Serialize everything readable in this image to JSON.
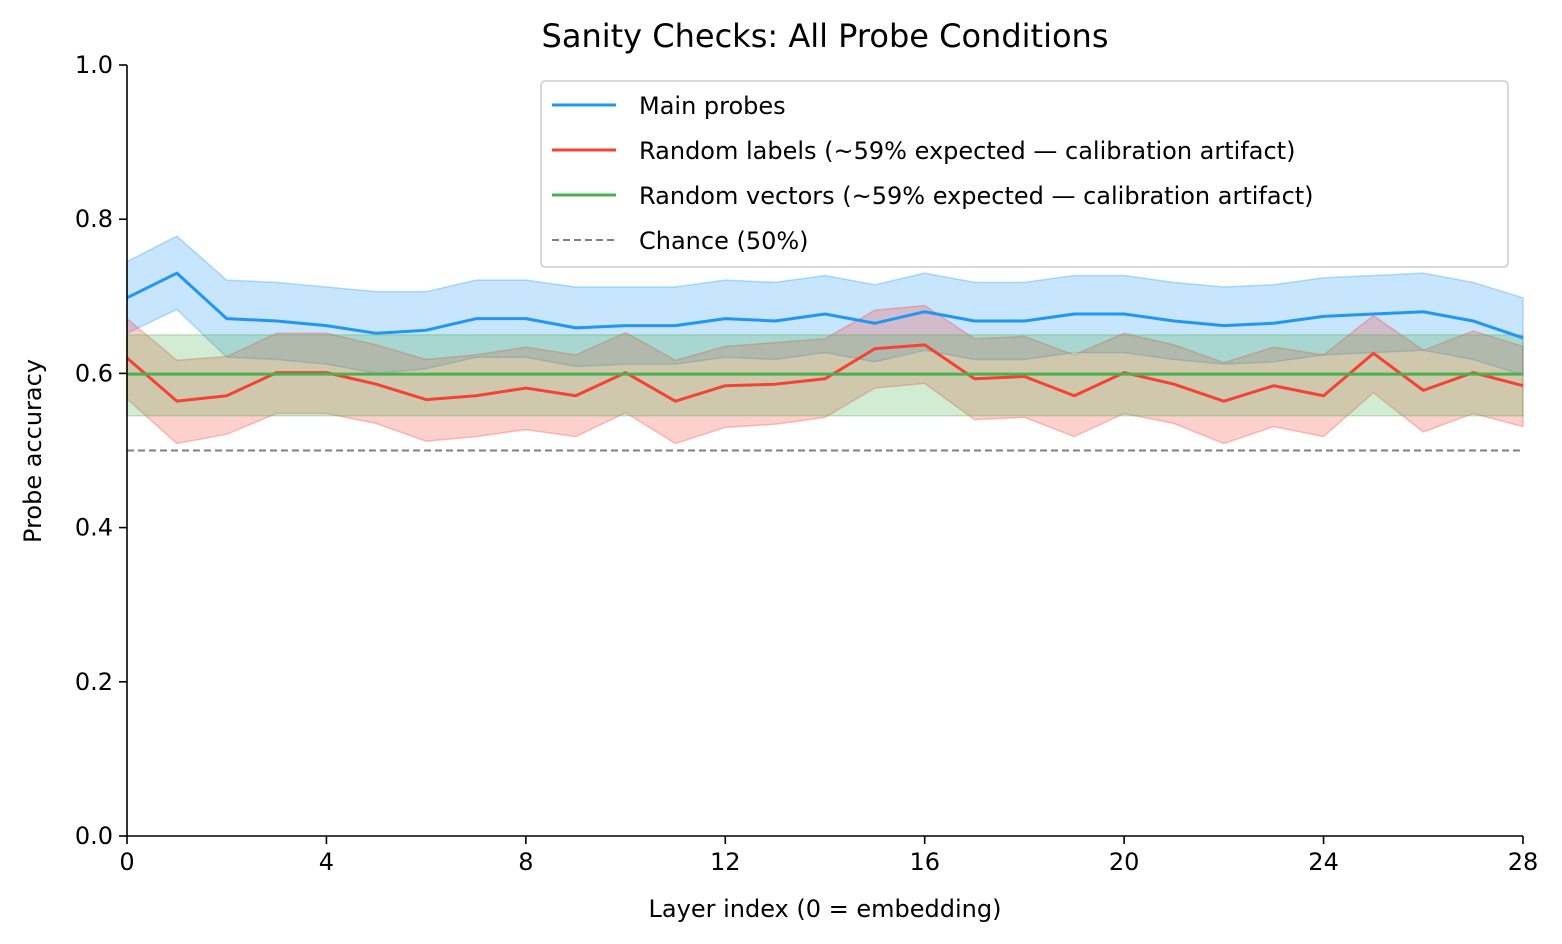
{
  "chart_data": {
    "type": "line",
    "title": "Sanity Checks: All Probe Conditions",
    "xlabel": "Layer index (0 = embedding)",
    "ylabel": "Probe accuracy",
    "xlim": [
      0,
      28
    ],
    "ylim": [
      0,
      1
    ],
    "xticks": [
      0,
      4,
      8,
      12,
      16,
      20,
      24,
      28
    ],
    "yticks": [
      0.0,
      0.2,
      0.4,
      0.6,
      0.8,
      1.0
    ],
    "ytick_labels": [
      "0.0",
      "0.2",
      "0.4",
      "0.6",
      "0.8",
      "1.0"
    ],
    "grid": false,
    "legend_position": "top-right",
    "x": [
      0,
      1,
      2,
      3,
      4,
      5,
      6,
      7,
      8,
      9,
      10,
      11,
      12,
      13,
      14,
      15,
      16,
      17,
      18,
      19,
      20,
      21,
      22,
      23,
      24,
      25,
      26,
      27,
      28
    ],
    "series": [
      {
        "name": "Main probes",
        "color": "#2196F3",
        "style": "solid",
        "values": [
          0.698,
          0.73,
          0.671,
          0.668,
          0.662,
          0.652,
          0.656,
          0.671,
          0.671,
          0.659,
          0.662,
          0.662,
          0.671,
          0.668,
          0.677,
          0.665,
          0.68,
          0.668,
          0.668,
          0.677,
          0.677,
          0.668,
          0.662,
          0.665,
          0.674,
          0.677,
          0.68,
          0.668,
          0.646
        ],
        "band_upper": [
          0.745,
          0.778,
          0.721,
          0.718,
          0.712,
          0.706,
          0.706,
          0.721,
          0.721,
          0.712,
          0.712,
          0.712,
          0.721,
          0.718,
          0.727,
          0.715,
          0.73,
          0.718,
          0.718,
          0.727,
          0.727,
          0.718,
          0.712,
          0.715,
          0.724,
          0.727,
          0.73,
          0.718,
          0.698
        ],
        "band_lower": [
          0.652,
          0.683,
          0.621,
          0.618,
          0.612,
          0.6,
          0.606,
          0.621,
          0.621,
          0.609,
          0.612,
          0.612,
          0.621,
          0.618,
          0.627,
          0.615,
          0.63,
          0.618,
          0.618,
          0.627,
          0.627,
          0.618,
          0.612,
          0.615,
          0.624,
          0.627,
          0.63,
          0.618,
          0.598
        ]
      },
      {
        "name": "Random labels (~59% expected — calibration artifact)",
        "color": "#F44336",
        "style": "solid",
        "values": [
          0.62,
          0.564,
          0.571,
          0.601,
          0.601,
          0.586,
          0.566,
          0.571,
          0.581,
          0.571,
          0.601,
          0.564,
          0.584,
          0.586,
          0.593,
          0.632,
          0.637,
          0.593,
          0.596,
          0.571,
          0.601,
          0.586,
          0.564,
          0.584,
          0.571,
          0.626,
          0.578,
          0.601,
          0.584
        ],
        "band_upper": [
          0.671,
          0.617,
          0.622,
          0.652,
          0.652,
          0.637,
          0.618,
          0.624,
          0.634,
          0.624,
          0.653,
          0.617,
          0.635,
          0.64,
          0.645,
          0.682,
          0.688,
          0.645,
          0.648,
          0.624,
          0.652,
          0.637,
          0.614,
          0.634,
          0.624,
          0.675,
          0.63,
          0.655,
          0.635
        ],
        "band_lower": [
          0.567,
          0.509,
          0.521,
          0.548,
          0.548,
          0.535,
          0.512,
          0.518,
          0.527,
          0.518,
          0.549,
          0.509,
          0.53,
          0.534,
          0.543,
          0.581,
          0.587,
          0.54,
          0.543,
          0.518,
          0.548,
          0.535,
          0.509,
          0.531,
          0.518,
          0.575,
          0.524,
          0.548,
          0.531
        ]
      },
      {
        "name": "Random vectors (~59% expected — calibration artifact)",
        "color": "#4CAF50",
        "style": "solid",
        "values": [
          0.599,
          0.599,
          0.599,
          0.599,
          0.599,
          0.599,
          0.599,
          0.599,
          0.599,
          0.599,
          0.599,
          0.599,
          0.599,
          0.599,
          0.599,
          0.599,
          0.599,
          0.599,
          0.599,
          0.599,
          0.599,
          0.599,
          0.599,
          0.599,
          0.599,
          0.599,
          0.599,
          0.599,
          0.599
        ],
        "band_upper": [
          0.65,
          0.65,
          0.65,
          0.65,
          0.65,
          0.65,
          0.65,
          0.65,
          0.65,
          0.65,
          0.65,
          0.65,
          0.65,
          0.65,
          0.65,
          0.65,
          0.65,
          0.65,
          0.65,
          0.65,
          0.65,
          0.65,
          0.65,
          0.65,
          0.65,
          0.65,
          0.65,
          0.65,
          0.65
        ],
        "band_lower": [
          0.545,
          0.545,
          0.545,
          0.545,
          0.545,
          0.545,
          0.545,
          0.545,
          0.545,
          0.545,
          0.545,
          0.545,
          0.545,
          0.545,
          0.545,
          0.545,
          0.545,
          0.545,
          0.545,
          0.545,
          0.545,
          0.545,
          0.545,
          0.545,
          0.545,
          0.545,
          0.545,
          0.545,
          0.545
        ]
      },
      {
        "name": "Chance (50%)",
        "color": "#808080",
        "style": "dashed",
        "values": [
          0.5,
          0.5,
          0.5,
          0.5,
          0.5,
          0.5,
          0.5,
          0.5,
          0.5,
          0.5,
          0.5,
          0.5,
          0.5,
          0.5,
          0.5,
          0.5,
          0.5,
          0.5,
          0.5,
          0.5,
          0.5,
          0.5,
          0.5,
          0.5,
          0.5,
          0.5,
          0.5,
          0.5,
          0.5
        ]
      }
    ]
  }
}
